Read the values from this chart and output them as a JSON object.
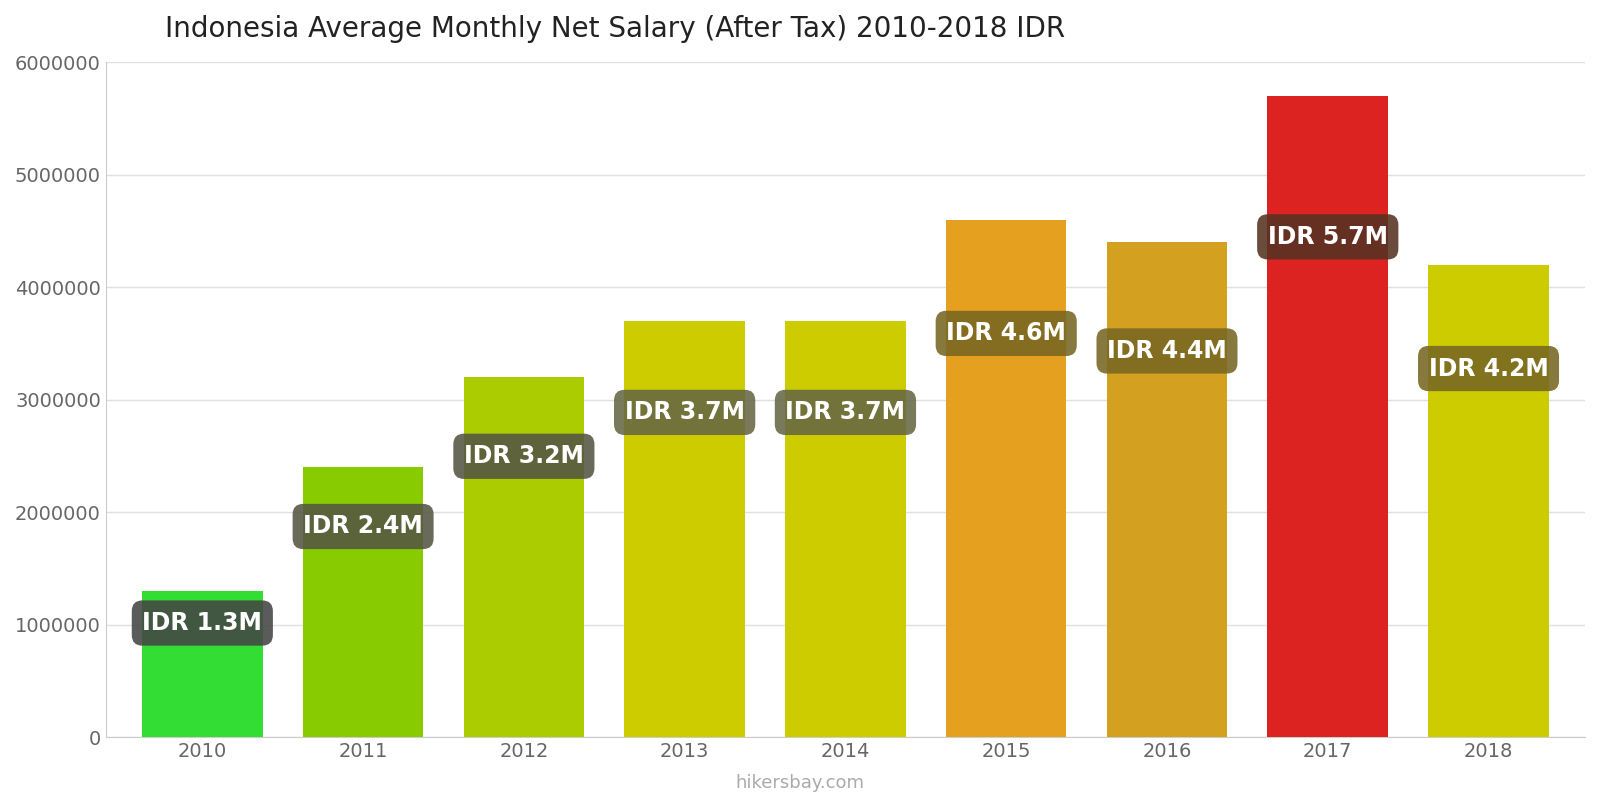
{
  "title": "Indonesia Average Monthly Net Salary (After Tax) 2010-2018 IDR",
  "years": [
    2010,
    2011,
    2012,
    2013,
    2014,
    2015,
    2016,
    2017,
    2018
  ],
  "values": [
    1300000,
    2400000,
    3200000,
    3700000,
    3700000,
    4600000,
    4400000,
    5700000,
    4200000
  ],
  "labels": [
    "IDR 1.3M",
    "IDR 2.4M",
    "IDR 3.2M",
    "IDR 3.7M",
    "IDR 3.7M",
    "IDR 4.6M",
    "IDR 4.4M",
    "IDR 5.7M",
    "IDR 4.2M"
  ],
  "bar_colors": [
    "#33dd33",
    "#88cc00",
    "#aacc00",
    "#cccc00",
    "#cccc00",
    "#e6a020",
    "#d4a020",
    "#dd2222",
    "#cccc00"
  ],
  "label_box_colors": [
    "#444444",
    "#555544",
    "#555544",
    "#666644",
    "#666644",
    "#776622",
    "#776622",
    "#553322",
    "#776622"
  ],
  "ylim": [
    0,
    6000000
  ],
  "yticks": [
    0,
    1000000,
    2000000,
    3000000,
    4000000,
    5000000,
    6000000
  ],
  "label_box_color": "#555544",
  "label_text_color": "#ffffff",
  "background_color": "#ffffff",
  "grid_color": "#e0e0e0",
  "watermark": "hikersbay.com",
  "title_fontsize": 20,
  "label_fontsize": 17,
  "tick_fontsize": 14,
  "watermark_fontsize": 13
}
